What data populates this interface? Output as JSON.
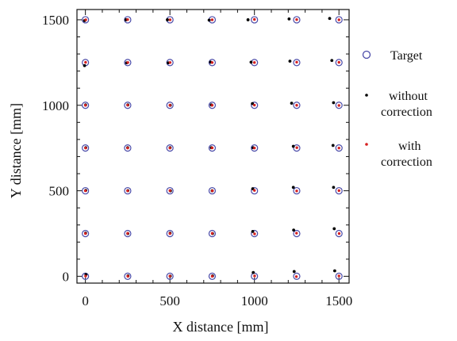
{
  "chart_data": {
    "type": "scatter",
    "title": "",
    "xlabel": "X distance [mm]",
    "ylabel": "Y distance [mm]",
    "xlim": [
      -50,
      1560
    ],
    "ylim": [
      -40,
      1560
    ],
    "x_ticks": [
      0,
      500,
      1000,
      1500
    ],
    "y_ticks": [
      0,
      500,
      1000,
      1500
    ],
    "x_tick_labels": [
      "0",
      "500",
      "1000",
      "1500"
    ],
    "y_tick_labels": [
      "0",
      "500",
      "1000",
      "1500"
    ],
    "grid": false,
    "legend_position": "right",
    "colors": {
      "target": "#4a4aa8",
      "without": "#000000",
      "with": "#d62020"
    },
    "grid_x": [
      0,
      250,
      500,
      750,
      1000,
      1250,
      1500
    ],
    "grid_y": [
      0,
      250,
      500,
      750,
      1000,
      1250,
      1500
    ],
    "series": [
      {
        "name": "Target",
        "marker": "open-circle",
        "points": [
          [
            0,
            0
          ],
          [
            250,
            0
          ],
          [
            500,
            0
          ],
          [
            750,
            0
          ],
          [
            1000,
            0
          ],
          [
            1250,
            0
          ],
          [
            1500,
            0
          ],
          [
            0,
            250
          ],
          [
            250,
            250
          ],
          [
            500,
            250
          ],
          [
            750,
            250
          ],
          [
            1000,
            250
          ],
          [
            1250,
            250
          ],
          [
            1500,
            250
          ],
          [
            0,
            500
          ],
          [
            250,
            500
          ],
          [
            500,
            500
          ],
          [
            750,
            500
          ],
          [
            1000,
            500
          ],
          [
            1250,
            500
          ],
          [
            1500,
            500
          ],
          [
            0,
            750
          ],
          [
            250,
            750
          ],
          [
            500,
            750
          ],
          [
            750,
            750
          ],
          [
            1000,
            750
          ],
          [
            1250,
            750
          ],
          [
            1500,
            750
          ],
          [
            0,
            1000
          ],
          [
            250,
            1000
          ],
          [
            500,
            1000
          ],
          [
            750,
            1000
          ],
          [
            1000,
            1000
          ],
          [
            1250,
            1000
          ],
          [
            1500,
            1000
          ],
          [
            0,
            1250
          ],
          [
            250,
            1250
          ],
          [
            500,
            1250
          ],
          [
            750,
            1250
          ],
          [
            1000,
            1250
          ],
          [
            1250,
            1250
          ],
          [
            1500,
            1250
          ],
          [
            0,
            1500
          ],
          [
            250,
            1500
          ],
          [
            500,
            1500
          ],
          [
            750,
            1500
          ],
          [
            1000,
            1500
          ],
          [
            1250,
            1500
          ],
          [
            1500,
            1500
          ]
        ]
      },
      {
        "name": "without correction",
        "marker": "dot",
        "points": [
          [
            3,
            10
          ],
          [
            252,
            2
          ],
          [
            502,
            1
          ],
          [
            752,
            2
          ],
          [
            993,
            22
          ],
          [
            1235,
            28
          ],
          [
            1475,
            32
          ],
          [
            1,
            252
          ],
          [
            251,
            250
          ],
          [
            501,
            252
          ],
          [
            752,
            250
          ],
          [
            990,
            262
          ],
          [
            1232,
            270
          ],
          [
            1472,
            278
          ],
          [
            2,
            502
          ],
          [
            251,
            501
          ],
          [
            503,
            500
          ],
          [
            750,
            500
          ],
          [
            990,
            512
          ],
          [
            1230,
            520
          ],
          [
            1468,
            520
          ],
          [
            2,
            752
          ],
          [
            250,
            752
          ],
          [
            501,
            752
          ],
          [
            745,
            752
          ],
          [
            992,
            752
          ],
          [
            1230,
            760
          ],
          [
            1465,
            765
          ],
          [
            1,
            1002
          ],
          [
            251,
            1002
          ],
          [
            502,
            1000
          ],
          [
            745,
            1002
          ],
          [
            988,
            1010
          ],
          [
            1220,
            1012
          ],
          [
            1468,
            1015
          ],
          [
            -5,
            1232
          ],
          [
            244,
            1248
          ],
          [
            490,
            1248
          ],
          [
            740,
            1252
          ],
          [
            980,
            1252
          ],
          [
            1210,
            1258
          ],
          [
            1458,
            1262
          ],
          [
            -5,
            1495
          ],
          [
            240,
            1500
          ],
          [
            485,
            1500
          ],
          [
            732,
            1498
          ],
          [
            962,
            1500
          ],
          [
            1205,
            1505
          ],
          [
            1445,
            1508
          ]
        ]
      },
      {
        "name": "with correction",
        "marker": "dot",
        "points": [
          [
            1,
            1
          ],
          [
            251,
            0
          ],
          [
            500,
            1
          ],
          [
            750,
            0
          ],
          [
            1001,
            2
          ],
          [
            1248,
            -2
          ],
          [
            1500,
            2
          ],
          [
            0,
            250
          ],
          [
            250,
            251
          ],
          [
            500,
            250
          ],
          [
            750,
            251
          ],
          [
            1001,
            248
          ],
          [
            1249,
            252
          ],
          [
            1501,
            250
          ],
          [
            0,
            500
          ],
          [
            250,
            500
          ],
          [
            500,
            501
          ],
          [
            751,
            500
          ],
          [
            1000,
            502
          ],
          [
            1250,
            499
          ],
          [
            1500,
            501
          ],
          [
            1,
            750
          ],
          [
            250,
            750
          ],
          [
            500,
            750
          ],
          [
            750,
            751
          ],
          [
            1000,
            750
          ],
          [
            1251,
            752
          ],
          [
            1500,
            750
          ],
          [
            0,
            1000
          ],
          [
            250,
            1001
          ],
          [
            500,
            1000
          ],
          [
            750,
            1000
          ],
          [
            1000,
            1001
          ],
          [
            1250,
            1000
          ],
          [
            1500,
            999
          ],
          [
            1,
            1251
          ],
          [
            251,
            1250
          ],
          [
            501,
            1250
          ],
          [
            750,
            1250
          ],
          [
            1000,
            1250
          ],
          [
            1250,
            1252
          ],
          [
            1500,
            1251
          ],
          [
            2,
            1500
          ],
          [
            250,
            1501
          ],
          [
            501,
            1500
          ],
          [
            750,
            1500
          ],
          [
            1000,
            1502
          ],
          [
            1250,
            1501
          ],
          [
            1500,
            1500
          ]
        ]
      }
    ]
  }
}
